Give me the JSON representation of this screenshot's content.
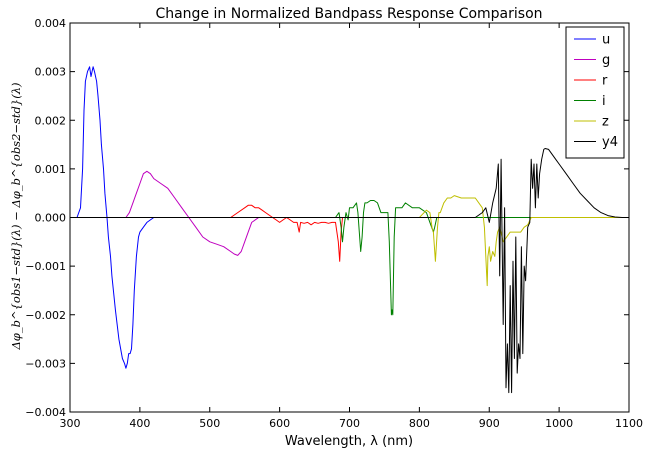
{
  "chart_data": {
    "type": "line",
    "title": "Change in Normalized Bandpass Response Comparison",
    "xlabel": "Wavelength, λ (nm)",
    "ylabel": "Δφ_b^{obs1−std}(λ) − Δφ_b^{obs2−std}(λ)",
    "xlim": [
      300,
      1100
    ],
    "ylim": [
      -0.004,
      0.004
    ],
    "xticks": [
      300,
      400,
      500,
      600,
      700,
      800,
      900,
      1000,
      1100
    ],
    "yticks": [
      -0.004,
      -0.003,
      -0.002,
      -0.001,
      0.0,
      0.001,
      0.002,
      0.003,
      0.004
    ],
    "xtick_labels": [
      "300",
      "400",
      "500",
      "600",
      "700",
      "800",
      "900",
      "1000",
      "1100"
    ],
    "ytick_labels": [
      "−0.004",
      "−0.003",
      "−0.002",
      "−0.001",
      "0.000",
      "0.001",
      "0.002",
      "0.003",
      "0.004"
    ],
    "legend_position": "top-right",
    "grid": false,
    "series": [
      {
        "name": "u",
        "color": "#0000ff",
        "x": [
          300,
          310,
          315,
          318,
          320,
          322,
          325,
          328,
          330,
          333,
          335,
          338,
          340,
          343,
          345,
          348,
          350,
          353,
          355,
          358,
          360,
          365,
          370,
          375,
          378,
          380,
          382,
          384,
          386,
          388,
          390,
          392,
          395,
          398,
          400,
          405,
          410,
          415,
          420,
          430,
          1100
        ],
        "y": [
          0,
          0.0,
          0.0002,
          0.001,
          0.0022,
          0.0028,
          0.003,
          0.0031,
          0.0029,
          0.0031,
          0.003,
          0.0028,
          0.0025,
          0.002,
          0.0015,
          0.001,
          0.0005,
          0.0,
          -0.0004,
          -0.0008,
          -0.0012,
          -0.0019,
          -0.0025,
          -0.0029,
          -0.003,
          -0.0031,
          -0.003,
          -0.0028,
          -0.0028,
          -0.0027,
          -0.0022,
          -0.0015,
          -0.0008,
          -0.0004,
          -0.0003,
          -0.0002,
          -0.0001,
          -5e-05,
          0.0,
          0.0,
          0.0
        ]
      },
      {
        "name": "g",
        "color": "#bf00bf",
        "x": [
          300,
          380,
          385,
          390,
          395,
          400,
          405,
          410,
          415,
          420,
          430,
          440,
          450,
          460,
          470,
          480,
          490,
          500,
          510,
          520,
          530,
          535,
          540,
          545,
          550,
          555,
          560,
          570,
          1100
        ],
        "y": [
          0,
          0.0,
          0.0001,
          0.0003,
          0.0005,
          0.0007,
          0.0009,
          0.00095,
          0.0009,
          0.0008,
          0.0007,
          0.0006,
          0.0004,
          0.0002,
          0.0,
          -0.0002,
          -0.0004,
          -0.0005,
          -0.00055,
          -0.0006,
          -0.0007,
          -0.00075,
          -0.00078,
          -0.0007,
          -0.0005,
          -0.0003,
          -0.0001,
          0.0,
          0.0
        ]
      },
      {
        "name": "r",
        "color": "#ff0000",
        "x": [
          300,
          530,
          540,
          550,
          555,
          560,
          565,
          570,
          575,
          580,
          590,
          595,
          600,
          605,
          610,
          615,
          620,
          625,
          628,
          630,
          635,
          640,
          645,
          650,
          655,
          660,
          665,
          670,
          675,
          680,
          684,
          686,
          688,
          690,
          695,
          700,
          1100
        ],
        "y": [
          0,
          0.0,
          0.0001,
          0.0002,
          0.00025,
          0.00025,
          0.0002,
          0.0002,
          0.00015,
          0.0001,
          0.0,
          -5e-05,
          -0.0001,
          -5e-05,
          0.0,
          -5e-05,
          -0.0001,
          -0.0001,
          -0.0003,
          -0.0001,
          -0.00012,
          -0.0001,
          -0.00015,
          -0.0001,
          -0.00012,
          -0.0001,
          -0.0001,
          -0.00012,
          -0.0001,
          -0.0001,
          -0.0005,
          -0.0009,
          -0.0003,
          0.0,
          0.0,
          0.0,
          0.0
        ]
      },
      {
        "name": "i",
        "color": "#008000",
        "x": [
          300,
          680,
          685,
          688,
          690,
          692,
          695,
          698,
          700,
          705,
          710,
          712,
          714,
          716,
          718,
          720,
          722,
          725,
          730,
          735,
          740,
          745,
          750,
          755,
          757,
          759,
          760,
          761,
          762,
          763,
          764,
          766,
          770,
          775,
          780,
          790,
          800,
          810,
          815,
          820,
          822,
          825,
          830,
          840,
          850,
          860,
          870,
          880,
          890,
          900,
          1100
        ],
        "y": [
          0,
          0.0,
          0.0001,
          -0.0002,
          -0.0005,
          -0.0002,
          0.0001,
          -5e-05,
          0.0002,
          0.0002,
          0.0003,
          0.0001,
          -0.0003,
          -0.0007,
          -0.0004,
          0.0001,
          0.0003,
          0.0003,
          0.00035,
          0.00035,
          0.0003,
          0.0001,
          0.0001,
          0.0001,
          -0.0005,
          -0.0015,
          -0.002,
          -0.0019,
          -0.002,
          -0.0012,
          -0.0004,
          0.0002,
          0.0002,
          0.0002,
          0.0003,
          0.0002,
          0.0002,
          0.0001,
          -0.0001,
          -0.0003,
          -0.0002,
          0.0,
          0.0,
          0.0,
          0.0,
          0.0,
          0.0,
          0.0,
          0.0,
          0.0,
          0.0
        ]
      },
      {
        "name": "z",
        "color": "#bfbf00",
        "x": [
          300,
          800,
          810,
          815,
          818,
          820,
          823,
          826,
          828,
          830,
          835,
          840,
          845,
          850,
          860,
          870,
          880,
          890,
          893,
          895,
          897,
          898,
          900,
          902,
          905,
          908,
          910,
          912,
          915,
          920,
          925,
          930,
          935,
          940,
          945,
          950,
          955,
          960,
          1100
        ],
        "y": [
          0,
          0.0,
          0.00015,
          0.0001,
          -0.0002,
          -0.0003,
          -0.0009,
          -0.0002,
          0.0001,
          0.0001,
          0.0003,
          0.0004,
          0.0004,
          0.00045,
          0.0004,
          0.0004,
          0.0004,
          0.0002,
          -0.0002,
          -0.0008,
          -0.0014,
          -0.0008,
          -0.0006,
          -0.0009,
          -0.0007,
          -0.0008,
          -0.0005,
          -0.0003,
          -0.0002,
          -0.0005,
          -0.0004,
          -0.0003,
          -0.0003,
          -0.0003,
          -0.0003,
          -0.0002,
          -0.00015,
          0.0,
          0.0
        ]
      },
      {
        "name": "y4",
        "color": "#000000",
        "x": [
          300,
          880,
          890,
          895,
          900,
          905,
          910,
          913,
          915,
          917,
          920,
          922,
          924,
          926,
          928,
          930,
          932,
          934,
          936,
          938,
          940,
          942,
          944,
          946,
          948,
          950,
          952,
          955,
          958,
          960,
          962,
          964,
          966,
          968,
          970,
          972,
          975,
          978,
          980,
          985,
          990,
          995,
          1000,
          1010,
          1020,
          1030,
          1040,
          1050,
          1060,
          1070,
          1080,
          1090,
          1100
        ],
        "y": [
          0,
          0.0,
          0.0001,
          0.0002,
          -0.0001,
          0.0003,
          0.0006,
          0.0011,
          -0.0012,
          0.0012,
          -0.0022,
          0.0002,
          -0.0035,
          -0.0026,
          -0.0036,
          -0.0014,
          -0.0036,
          -0.0009,
          -0.0029,
          -0.0004,
          -0.0032,
          -0.0026,
          -0.0029,
          -0.0006,
          -0.0028,
          -0.001,
          -0.0013,
          -0.0002,
          -0.0001,
          0.0012,
          0.0006,
          0.0011,
          0.0002,
          0.0011,
          0.0004,
          0.0009,
          0.0012,
          0.0014,
          0.00142,
          0.0014,
          0.0013,
          0.0012,
          0.0011,
          0.0009,
          0.0007,
          0.0005,
          0.00035,
          0.0002,
          0.0001,
          4e-05,
          1e-05,
          0.0,
          0.0
        ]
      }
    ]
  }
}
